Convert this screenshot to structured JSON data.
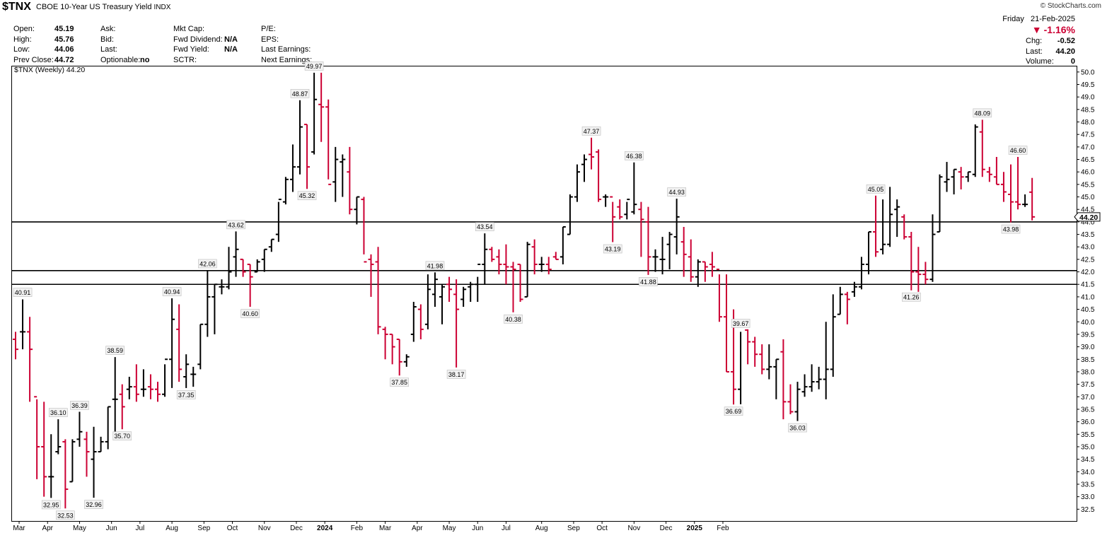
{
  "header": {
    "symbol": "$TNX",
    "description": "CBOE 10-Year US Treasury Yield",
    "exchange": "INDX",
    "copyright": "© StockCharts.com",
    "quote_col1": [
      {
        "label": "Open:",
        "value": "45.19"
      },
      {
        "label": "High:",
        "value": "45.76"
      },
      {
        "label": "Low:",
        "value": "44.06"
      },
      {
        "label": "Prev Close:",
        "value": "44.72"
      }
    ],
    "quote_col2": [
      {
        "label": "Ask:",
        "value": ""
      },
      {
        "label": "Bid:",
        "value": ""
      },
      {
        "label": "Last:",
        "value": ""
      },
      {
        "label": "Optionable:",
        "value": "no"
      }
    ],
    "quote_col3": [
      {
        "label": "Mkt Cap:",
        "value": ""
      },
      {
        "label": "Fwd Dividend:",
        "value": "N/A"
      },
      {
        "label": "Fwd Yield:",
        "value": "N/A"
      },
      {
        "label": "SCTR:",
        "value": ""
      }
    ],
    "quote_col4": [
      {
        "label": "P/E:",
        "value": ""
      },
      {
        "label": "EPS:",
        "value": ""
      },
      {
        "label": "Last Earnings:",
        "value": ""
      },
      {
        "label": "Next Earnings:",
        "value": ""
      }
    ],
    "date": "Friday   21-Feb-2025",
    "change_pct": "-1.16%",
    "chg_label": "Chg:",
    "chg_value": "-0.52",
    "last_label": "Last:",
    "last_value": "44.20",
    "volume_label": "Volume:",
    "volume_value": "0"
  },
  "chart_data": {
    "type": "ohlc",
    "legend": "$TNX (Weekly) 44.20",
    "last_price_label": "44.20",
    "ylim": [
      32.0,
      50.25
    ],
    "y_ticks": [
      32.5,
      33.0,
      33.5,
      34.0,
      34.5,
      35.0,
      35.5,
      36.0,
      36.5,
      37.0,
      37.5,
      38.0,
      38.5,
      39.0,
      39.5,
      40.0,
      40.5,
      41.0,
      41.5,
      42.0,
      42.5,
      43.0,
      43.5,
      44.0,
      44.5,
      45.0,
      45.5,
      46.0,
      46.5,
      47.0,
      47.5,
      48.0,
      48.5,
      49.0,
      49.5,
      50.0
    ],
    "horizontal_lines": [
      44.0,
      42.05,
      41.5
    ],
    "x_labels": [
      {
        "label": "Mar",
        "bar": 0.5
      },
      {
        "label": "Apr",
        "bar": 4.5
      },
      {
        "label": "May",
        "bar": 9
      },
      {
        "label": "Jun",
        "bar": 13.5
      },
      {
        "label": "Jul",
        "bar": 17.5
      },
      {
        "label": "Aug",
        "bar": 22
      },
      {
        "label": "Sep",
        "bar": 26.5
      },
      {
        "label": "Oct",
        "bar": 30.5
      },
      {
        "label": "Nov",
        "bar": 35
      },
      {
        "label": "Dec",
        "bar": 39.5
      },
      {
        "label": "2024",
        "bar": 43.5,
        "bold": true
      },
      {
        "label": "Feb",
        "bar": 48
      },
      {
        "label": "Mar",
        "bar": 52
      },
      {
        "label": "Apr",
        "bar": 56.5
      },
      {
        "label": "May",
        "bar": 61
      },
      {
        "label": "Jun",
        "bar": 65
      },
      {
        "label": "Jul",
        "bar": 69
      },
      {
        "label": "Aug",
        "bar": 74
      },
      {
        "label": "Sep",
        "bar": 78.5
      },
      {
        "label": "Oct",
        "bar": 82.5
      },
      {
        "label": "Nov",
        "bar": 87
      },
      {
        "label": "Dec",
        "bar": 91.5
      },
      {
        "label": "2025",
        "bar": 95.5,
        "bold": true
      },
      {
        "label": "Feb",
        "bar": 99.5
      }
    ],
    "bars": [
      [
        39.3,
        39.6,
        38.5,
        38.9
      ],
      [
        39.6,
        40.9,
        38.9,
        39.6
      ],
      [
        39.6,
        40.2,
        36.8,
        38.9
      ],
      [
        37.0,
        36.9,
        33.7,
        35.0
      ],
      [
        35.0,
        36.8,
        33.0,
        33.8
      ],
      [
        33.8,
        35.5,
        32.95,
        33.8
      ],
      [
        34.8,
        36.1,
        34.7,
        35.0
      ],
      [
        35.2,
        35.3,
        32.53,
        33.3
      ],
      [
        33.6,
        35.3,
        33.6,
        35.2
      ],
      [
        35.3,
        36.4,
        35.0,
        35.6
      ],
      [
        35.3,
        35.6,
        33.8,
        34.8
      ],
      [
        34.5,
        35.8,
        32.96,
        34.8
      ],
      [
        34.8,
        35.4,
        34.8,
        35.2
      ],
      [
        35.2,
        36.6,
        34.9,
        36.6
      ],
      [
        36.9,
        38.59,
        35.6,
        36.9
      ],
      [
        37.1,
        37.5,
        35.7,
        36.6
      ],
      [
        37.3,
        37.8,
        36.9,
        37.4
      ],
      [
        37.4,
        38.3,
        36.8,
        37.1
      ],
      [
        37.3,
        38.1,
        37.0,
        37.3
      ],
      [
        37.4,
        37.9,
        36.9,
        37.3
      ],
      [
        37.3,
        37.6,
        36.8,
        37.1
      ],
      [
        37.1,
        38.3,
        37.0,
        38.5
      ],
      [
        38.5,
        40.94,
        37.35,
        40.1
      ],
      [
        39.7,
        40.7,
        37.6,
        38.1
      ],
      [
        37.8,
        38.7,
        37.35,
        38.3
      ],
      [
        37.9,
        38.2,
        37.4,
        37.9
      ],
      [
        38.3,
        39.9,
        38.1,
        39.9
      ],
      [
        39.9,
        42.06,
        39.4,
        41.0
      ],
      [
        41.0,
        41.5,
        39.5,
        41.5
      ],
      [
        41.4,
        41.7,
        41.1,
        41.4
      ],
      [
        41.4,
        43.0,
        41.3,
        42.0
      ],
      [
        42.6,
        43.62,
        41.8,
        42.9
      ],
      [
        42.5,
        42.5,
        41.8,
        42.0
      ],
      [
        42.3,
        42.3,
        40.6,
        41.8
      ],
      [
        42.0,
        42.5,
        42.0,
        42.4
      ],
      [
        42.5,
        42.9,
        42.0,
        42.9
      ],
      [
        43.0,
        43.3,
        42.8,
        43.3
      ],
      [
        43.5,
        44.8,
        43.2,
        44.9
      ],
      [
        44.8,
        45.8,
        44.7,
        45.7
      ],
      [
        45.7,
        47.1,
        45.2,
        46.2
      ],
      [
        46.2,
        48.87,
        45.9,
        47.8
      ],
      [
        47.9,
        47.9,
        45.32,
        46.2
      ],
      [
        46.8,
        49.97,
        46.7,
        48.9
      ],
      [
        48.7,
        49.97,
        47.2,
        48.6
      ],
      [
        48.6,
        48.9,
        45.7,
        45.5
      ],
      [
        45.6,
        47.0,
        44.8,
        46.5
      ],
      [
        46.4,
        46.7,
        45.0,
        46.5
      ],
      [
        46.0,
        47.0,
        44.3,
        44.5
      ],
      [
        44.5,
        45.0,
        43.9,
        45.0
      ],
      [
        44.9,
        45.0,
        42.7,
        42.4
      ],
      [
        42.5,
        42.7,
        41.0,
        42.3
      ],
      [
        42.4,
        43.0,
        39.5,
        39.8
      ],
      [
        39.7,
        39.8,
        38.5,
        39.5
      ],
      [
        39.5,
        39.5,
        38.3,
        39.0
      ],
      [
        39.3,
        39.3,
        37.85,
        38.4
      ],
      [
        38.4,
        38.7,
        38.2,
        38.6
      ],
      [
        39.5,
        40.8,
        39.2,
        40.6
      ],
      [
        40.5,
        40.7,
        39.3,
        39.7
      ],
      [
        39.9,
        41.9,
        39.7,
        41.3
      ],
      [
        41.1,
        41.98,
        40.6,
        41.7
      ],
      [
        41.0,
        41.5,
        39.9,
        41.4
      ],
      [
        41.5,
        41.8,
        40.8,
        41.3
      ],
      [
        41.1,
        41.7,
        38.17,
        40.5
      ],
      [
        40.9,
        41.4,
        40.6,
        41.3
      ],
      [
        41.4,
        41.6,
        40.8,
        41.5
      ],
      [
        41.5,
        41.8,
        40.8,
        42.3
      ],
      [
        42.3,
        43.54,
        41.5,
        42.9
      ],
      [
        42.9,
        43.0,
        42.4,
        42.5
      ],
      [
        42.6,
        42.9,
        41.9,
        42.3
      ],
      [
        42.3,
        43.1,
        41.5,
        42.2
      ],
      [
        42.2,
        42.4,
        40.38,
        42.1
      ],
      [
        42.3,
        42.3,
        40.8,
        40.9
      ],
      [
        41.0,
        43.2,
        41.0,
        43.1
      ],
      [
        43.0,
        43.3,
        41.9,
        42.3
      ],
      [
        42.3,
        42.6,
        42.0,
        42.3
      ],
      [
        42.3,
        42.6,
        41.9,
        42.1
      ],
      [
        42.6,
        42.8,
        42.5,
        42.5
      ],
      [
        42.6,
        43.8,
        42.3,
        43.8
      ],
      [
        43.5,
        45.1,
        43.5,
        45.0
      ],
      [
        45.0,
        46.3,
        44.8,
        46.0
      ],
      [
        46.3,
        46.7,
        45.6,
        46.5
      ],
      [
        46.7,
        47.37,
        46.1,
        46.6
      ],
      [
        46.8,
        46.9,
        44.8,
        44.9
      ],
      [
        45.0,
        45.1,
        44.6,
        45.0
      ],
      [
        45.0,
        44.8,
        43.19,
        44.2
      ],
      [
        44.6,
        44.9,
        44.1,
        44.2
      ],
      [
        44.3,
        44.8,
        44.1,
        44.9
      ],
      [
        44.4,
        46.38,
        44.3,
        44.7
      ],
      [
        44.5,
        44.8,
        42.6,
        44.1
      ],
      [
        44.0,
        44.6,
        41.88,
        42.6
      ],
      [
        42.6,
        42.9,
        42.0,
        42.6
      ],
      [
        42.5,
        43.4,
        41.9,
        42.5
      ],
      [
        43.1,
        43.6,
        42.1,
        43.5
      ],
      [
        43.4,
        44.93,
        42.7,
        44.2
      ],
      [
        43.2,
        43.8,
        41.8,
        42.7
      ],
      [
        42.6,
        43.3,
        41.6,
        41.8
      ],
      [
        41.8,
        42.5,
        41.4,
        42.4
      ],
      [
        42.4,
        42.4,
        41.6,
        42.2
      ],
      [
        42.3,
        42.8,
        41.8,
        42.2
      ],
      [
        42.1,
        41.9,
        40.0,
        40.2
      ],
      [
        40.2,
        41.9,
        38.0,
        38.0
      ],
      [
        38.0,
        40.5,
        36.69,
        37.3
      ],
      [
        37.3,
        39.6,
        36.7,
        39.9
      ],
      [
        39.67,
        39.7,
        38.3,
        39.2
      ],
      [
        39.2,
        39.4,
        38.2,
        38.7
      ],
      [
        38.7,
        39.1,
        37.9,
        38.1
      ],
      [
        38.1,
        39.1,
        37.7,
        38.2
      ],
      [
        38.2,
        38.5,
        36.9,
        38.5
      ],
      [
        38.8,
        39.3,
        36.1,
        36.8
      ],
      [
        36.8,
        37.5,
        36.3,
        36.4
      ],
      [
        36.4,
        37.6,
        36.03,
        37.3
      ],
      [
        37.2,
        37.9,
        37.0,
        37.4
      ],
      [
        37.4,
        38.3,
        37.2,
        37.6
      ],
      [
        37.6,
        38.2,
        37.3,
        37.7
      ],
      [
        37.7,
        40.0,
        36.9,
        38.1
      ],
      [
        38.1,
        41.1,
        37.8,
        40.2
      ],
      [
        40.3,
        41.4,
        40.3,
        41.1
      ],
      [
        41.1,
        41.2,
        39.9,
        40.9
      ],
      [
        41.2,
        41.6,
        41.0,
        41.4
      ],
      [
        41.4,
        42.6,
        41.3,
        42.3
      ],
      [
        42.3,
        43.6,
        41.9,
        43.6
      ],
      [
        43.6,
        45.05,
        42.6,
        42.8
      ],
      [
        42.9,
        44.9,
        42.7,
        43.1
      ],
      [
        43.1,
        45.4,
        43.0,
        44.3
      ],
      [
        44.5,
        44.9,
        43.4,
        44.6
      ],
      [
        44.2,
        44.3,
        43.3,
        43.4
      ],
      [
        43.4,
        43.6,
        41.26,
        42.0
      ],
      [
        42.0,
        43.0,
        41.2,
        41.9
      ],
      [
        41.9,
        42.4,
        41.5,
        41.7
      ],
      [
        41.7,
        44.3,
        41.6,
        43.5
      ],
      [
        43.6,
        45.9,
        43.6,
        45.8
      ],
      [
        45.6,
        46.4,
        45.2,
        45.7
      ],
      [
        45.8,
        46.1,
        45.1,
        46.1
      ],
      [
        46.0,
        46.2,
        45.3,
        45.8
      ],
      [
        45.8,
        46.0,
        45.6,
        46.0
      ],
      [
        45.9,
        47.9,
        45.8,
        47.8
      ],
      [
        47.6,
        48.09,
        45.8,
        46.1
      ],
      [
        46.0,
        46.2,
        45.6,
        45.9
      ],
      [
        45.8,
        46.6,
        45.5,
        45.5
      ],
      [
        45.5,
        46.0,
        44.8,
        45.2
      ],
      [
        45.1,
        46.3,
        43.98,
        44.8
      ],
      [
        44.8,
        46.6,
        44.5,
        44.7
      ],
      [
        44.7,
        45.1,
        44.6,
        44.7
      ],
      [
        45.19,
        45.76,
        44.06,
        44.2
      ]
    ],
    "annotations": [
      {
        "bar": 1,
        "value": 40.91,
        "text": "40.91",
        "pos": "above"
      },
      {
        "bar": 5,
        "value": 32.95,
        "text": "32.95",
        "pos": "below"
      },
      {
        "bar": 6,
        "value": 36.1,
        "text": "36.10",
        "pos": "above"
      },
      {
        "bar": 7,
        "value": 32.53,
        "text": "32.53",
        "pos": "below"
      },
      {
        "bar": 9,
        "value": 36.39,
        "text": "36.39",
        "pos": "above"
      },
      {
        "bar": 11,
        "value": 32.96,
        "text": "32.96",
        "pos": "below"
      },
      {
        "bar": 14,
        "value": 38.59,
        "text": "38.59",
        "pos": "above"
      },
      {
        "bar": 15,
        "value": 35.7,
        "text": "35.70",
        "pos": "below"
      },
      {
        "bar": 22,
        "value": 40.94,
        "text": "40.94",
        "pos": "above"
      },
      {
        "bar": 24,
        "value": 37.35,
        "text": "37.35",
        "pos": "below"
      },
      {
        "bar": 27,
        "value": 42.06,
        "text": "42.06",
        "pos": "above"
      },
      {
        "bar": 31,
        "value": 43.62,
        "text": "43.62",
        "pos": "above"
      },
      {
        "bar": 33,
        "value": 40.6,
        "text": "40.60",
        "pos": "below"
      },
      {
        "bar": 40,
        "value": 48.87,
        "text": "48.87",
        "pos": "above"
      },
      {
        "bar": 41,
        "value": 45.32,
        "text": "45.32",
        "pos": "below"
      },
      {
        "bar": 42,
        "value": 49.97,
        "text": "49.97",
        "pos": "above"
      },
      {
        "bar": 54,
        "value": 37.85,
        "text": "37.85",
        "pos": "below"
      },
      {
        "bar": 59,
        "value": 41.98,
        "text": "41.98",
        "pos": "above"
      },
      {
        "bar": 62,
        "value": 38.17,
        "text": "38.17",
        "pos": "below"
      },
      {
        "bar": 66,
        "value": 43.54,
        "text": "43.54",
        "pos": "above"
      },
      {
        "bar": 70,
        "value": 40.38,
        "text": "40.38",
        "pos": "below"
      },
      {
        "bar": 81,
        "value": 47.37,
        "text": "47.37",
        "pos": "above"
      },
      {
        "bar": 84,
        "value": 43.19,
        "text": "43.19",
        "pos": "below"
      },
      {
        "bar": 87,
        "value": 46.38,
        "text": "46.38",
        "pos": "above"
      },
      {
        "bar": 89,
        "value": 41.88,
        "text": "41.88",
        "pos": "below"
      },
      {
        "bar": 93,
        "value": 44.93,
        "text": "44.93",
        "pos": "above"
      },
      {
        "bar": 101,
        "value": 36.69,
        "text": "36.69",
        "pos": "below"
      },
      {
        "bar": 102,
        "value": 39.67,
        "text": "39.67",
        "pos": "above"
      },
      {
        "bar": 110,
        "value": 36.03,
        "text": "36.03",
        "pos": "below"
      },
      {
        "bar": 121,
        "value": 45.05,
        "text": "45.05",
        "pos": "above"
      },
      {
        "bar": 126,
        "value": 41.26,
        "text": "41.26",
        "pos": "below"
      },
      {
        "bar": 136,
        "value": 48.09,
        "text": "48.09",
        "pos": "above"
      },
      {
        "bar": 140,
        "value": 43.98,
        "text": "43.98",
        "pos": "below"
      },
      {
        "bar": 141,
        "value": 46.6,
        "text": "46.60",
        "pos": "above"
      }
    ],
    "colors": {
      "up": "#000000",
      "down": "#cc0033",
      "line": "#000000",
      "grid": "none"
    }
  }
}
